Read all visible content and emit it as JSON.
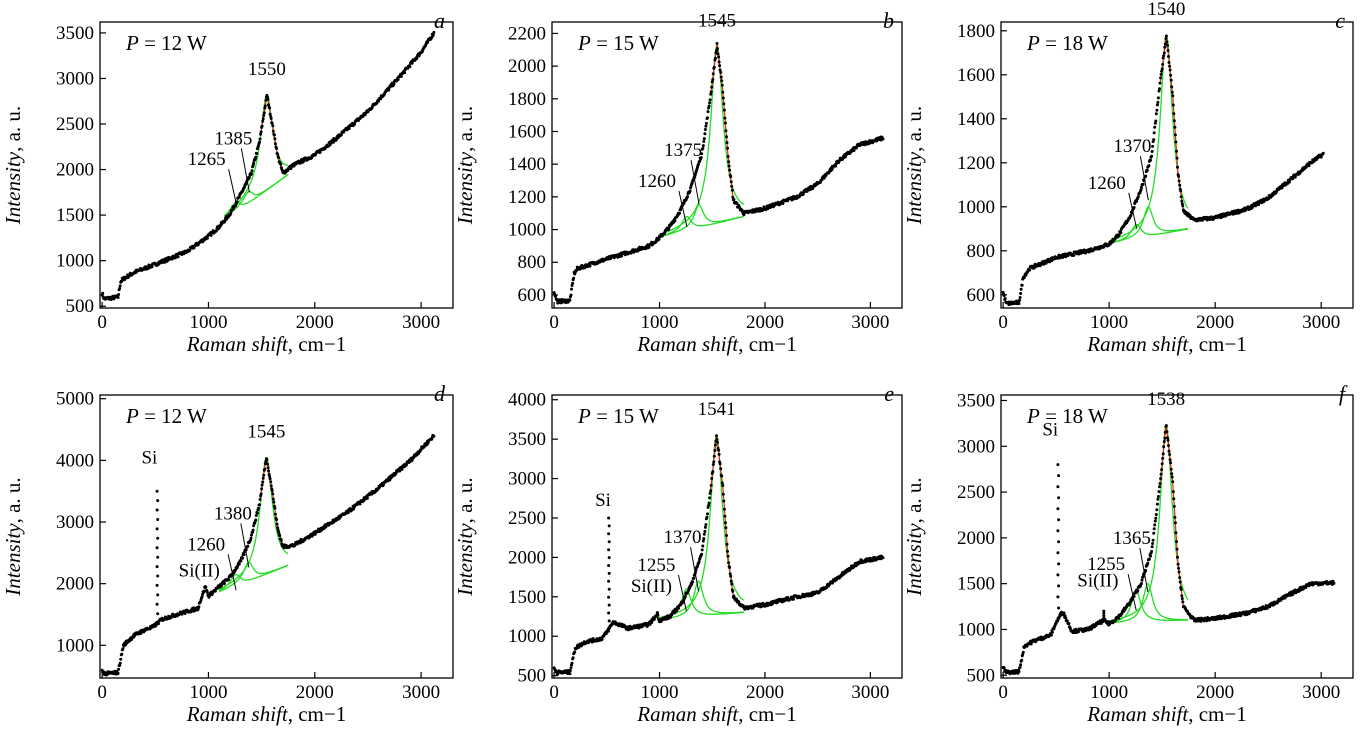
{
  "chart_data": [
    {
      "panel": "a",
      "type": "scatter",
      "power_symbol": "P",
      "power_value": " = 12 W",
      "xlabel": "Raman shift",
      "xunit": ", cm−1",
      "ylabel": "Intensity",
      "yunit": ", a. u.",
      "xlim": [
        -20,
        3300
      ],
      "ylim": [
        480,
        3620
      ],
      "xticks": [
        0,
        1000,
        2000,
        3000
      ],
      "yticks": [
        500,
        1000,
        1500,
        2000,
        2500,
        3000,
        3500
      ],
      "peaks": [
        {
          "label": "1265",
          "x": 1265,
          "y": 1850
        },
        {
          "label": "1385",
          "x": 1385,
          "y": 1990
        },
        {
          "label": "1550",
          "x": 1550,
          "y": 2820
        }
      ],
      "spectrum": [
        [
          0,
          640
        ],
        [
          20,
          580
        ],
        [
          150,
          600
        ],
        [
          175,
          770
        ],
        [
          200,
          800
        ],
        [
          300,
          870
        ],
        [
          500,
          960
        ],
        [
          800,
          1100
        ],
        [
          1000,
          1270
        ],
        [
          1100,
          1370
        ],
        [
          1200,
          1510
        ],
        [
          1300,
          1720
        ],
        [
          1400,
          1950
        ],
        [
          1480,
          2300
        ],
        [
          1550,
          2820
        ],
        [
          1600,
          2500
        ],
        [
          1650,
          2160
        ],
        [
          1700,
          1960
        ],
        [
          1800,
          2050
        ],
        [
          2000,
          2160
        ],
        [
          2200,
          2340
        ],
        [
          2500,
          2640
        ],
        [
          2800,
          3020
        ],
        [
          3000,
          3290
        ],
        [
          3120,
          3500
        ]
      ],
      "peak_bands": [
        [
          1265,
          1640,
          60
        ],
        [
          1385,
          1760,
          55
        ],
        [
          1550,
          2820,
          70
        ]
      ],
      "baseline": [
        [
          1150,
          1450
        ],
        [
          1750,
          1950
        ]
      ],
      "si": null
    },
    {
      "panel": "b",
      "type": "scatter",
      "power_symbol": "P",
      "power_value": " = 15 W",
      "xlabel": "Raman shift",
      "xunit": ", cm−1",
      "ylabel": "Intensity",
      "yunit": ", a. u.",
      "xlim": [
        -20,
        3300
      ],
      "ylim": [
        520,
        2270
      ],
      "xticks": [
        0,
        1000,
        2000,
        3000
      ],
      "yticks": [
        600,
        800,
        1000,
        1200,
        1400,
        1600,
        1800,
        2000,
        2200
      ],
      "peaks": [
        {
          "label": "1260",
          "x": 1260,
          "y": 1150
        },
        {
          "label": "1375",
          "x": 1375,
          "y": 1290
        },
        {
          "label": "1545",
          "x": 1545,
          "y": 2120
        }
      ],
      "spectrum": [
        [
          0,
          620
        ],
        [
          30,
          560
        ],
        [
          150,
          565
        ],
        [
          190,
          730
        ],
        [
          220,
          760
        ],
        [
          400,
          800
        ],
        [
          700,
          860
        ],
        [
          900,
          900
        ],
        [
          1000,
          950
        ],
        [
          1100,
          1020
        ],
        [
          1200,
          1120
        ],
        [
          1300,
          1260
        ],
        [
          1400,
          1460
        ],
        [
          1480,
          1800
        ],
        [
          1545,
          2130
        ],
        [
          1600,
          1850
        ],
        [
          1650,
          1450
        ],
        [
          1700,
          1180
        ],
        [
          1800,
          1100
        ],
        [
          2000,
          1130
        ],
        [
          2300,
          1200
        ],
        [
          2500,
          1280
        ],
        [
          2700,
          1420
        ],
        [
          2900,
          1520
        ],
        [
          3120,
          1560
        ]
      ],
      "peak_bands": [
        [
          1260,
          1080,
          55
        ],
        [
          1375,
          1150,
          55
        ],
        [
          1545,
          2130,
          70
        ]
      ],
      "baseline": [
        [
          1000,
          950
        ],
        [
          1800,
          1080
        ]
      ],
      "si": null
    },
    {
      "panel": "c",
      "type": "scatter",
      "power_symbol": "P",
      "power_value": " = 18 W",
      "xlabel": "Raman shift",
      "xunit": ", cm−1",
      "ylabel": "Intensity",
      "yunit": ", a. u.",
      "xlim": [
        -20,
        3300
      ],
      "ylim": [
        540,
        1840
      ],
      "xticks": [
        0,
        1000,
        2000,
        3000
      ],
      "yticks": [
        600,
        800,
        1000,
        1200,
        1400,
        1600,
        1800
      ],
      "peaks": [
        {
          "label": "1260",
          "x": 1260,
          "y": 1000
        },
        {
          "label": "1370",
          "x": 1370,
          "y": 1130
        },
        {
          "label": "1540",
          "x": 1540,
          "y": 1780
        }
      ],
      "spectrum": [
        [
          0,
          610
        ],
        [
          30,
          560
        ],
        [
          150,
          565
        ],
        [
          190,
          680
        ],
        [
          250,
          720
        ],
        [
          500,
          770
        ],
        [
          800,
          800
        ],
        [
          1000,
          830
        ],
        [
          1100,
          880
        ],
        [
          1200,
          960
        ],
        [
          1300,
          1080
        ],
        [
          1400,
          1230
        ],
        [
          1480,
          1560
        ],
        [
          1540,
          1780
        ],
        [
          1600,
          1500
        ],
        [
          1650,
          1150
        ],
        [
          1700,
          980
        ],
        [
          1800,
          940
        ],
        [
          2000,
          950
        ],
        [
          2300,
          990
        ],
        [
          2500,
          1040
        ],
        [
          2700,
          1120
        ],
        [
          2900,
          1200
        ],
        [
          3020,
          1240
        ]
      ],
      "peak_bands": [
        [
          1260,
          920,
          55
        ],
        [
          1370,
          1000,
          55
        ],
        [
          1540,
          1780,
          70
        ]
      ],
      "baseline": [
        [
          1000,
          830
        ],
        [
          1750,
          900
        ]
      ],
      "si": null
    },
    {
      "panel": "d",
      "type": "scatter",
      "power_symbol": "P",
      "power_value": " = 12 W",
      "xlabel": "Raman shift",
      "xunit": ", cm−1",
      "ylabel": "Intensity",
      "yunit": ", a. u.",
      "xlim": [
        -20,
        3300
      ],
      "ylim": [
        470,
        5060
      ],
      "xticks": [
        0,
        1000,
        2000,
        3000
      ],
      "yticks": [
        1000,
        2000,
        3000,
        4000,
        5000
      ],
      "peaks": [
        {
          "label": "1260",
          "x": 1260,
          "y": 2250
        },
        {
          "label": "1380",
          "x": 1380,
          "y": 2620
        },
        {
          "label": "1545",
          "x": 1545,
          "y": 4050
        }
      ],
      "spectrum": [
        [
          0,
          580
        ],
        [
          30,
          540
        ],
        [
          150,
          560
        ],
        [
          200,
          1000
        ],
        [
          300,
          1160
        ],
        [
          400,
          1250
        ],
        [
          480,
          1300
        ],
        [
          560,
          1420
        ],
        [
          700,
          1500
        ],
        [
          900,
          1600
        ],
        [
          970,
          1950
        ],
        [
          1000,
          1800
        ],
        [
          1100,
          1950
        ],
        [
          1200,
          2100
        ],
        [
          1300,
          2350
        ],
        [
          1400,
          2750
        ],
        [
          1480,
          3300
        ],
        [
          1545,
          4050
        ],
        [
          1600,
          3500
        ],
        [
          1650,
          2900
        ],
        [
          1700,
          2600
        ],
        [
          1800,
          2620
        ],
        [
          2000,
          2820
        ],
        [
          2300,
          3150
        ],
        [
          2600,
          3550
        ],
        [
          2900,
          4000
        ],
        [
          3120,
          4400
        ]
      ],
      "peak_bands": [
        [
          1260,
          2150,
          55
        ],
        [
          1380,
          2350,
          55
        ],
        [
          1545,
          4050,
          70
        ]
      ],
      "baseline": [
        [
          1100,
          1850
        ],
        [
          1750,
          2300
        ]
      ],
      "si": {
        "label": "Si",
        "label2": "Si(II)",
        "x": 520,
        "peak": 3500,
        "x2": 970,
        "peak2": 1950,
        "label_x": 520,
        "label_y": 3950,
        "label2_y": 2120
      }
    },
    {
      "panel": "e",
      "type": "scatter",
      "power_symbol": "P",
      "power_value": " = 15 W",
      "xlabel": "Raman shift",
      "xunit": ", cm−1",
      "ylabel": "Intensity",
      "yunit": ", a. u.",
      "xlim": [
        -20,
        3300
      ],
      "ylim": [
        470,
        4060
      ],
      "xticks": [
        0,
        1000,
        2000,
        3000
      ],
      "yticks": [
        500,
        1000,
        1500,
        2000,
        2500,
        3000,
        3500,
        4000
      ],
      "peaks": [
        {
          "label": "1255",
          "x": 1255,
          "y": 1600
        },
        {
          "label": "1370",
          "x": 1370,
          "y": 1850
        },
        {
          "label": "1541",
          "x": 1541,
          "y": 3550
        }
      ],
      "spectrum": [
        [
          0,
          590
        ],
        [
          30,
          540
        ],
        [
          150,
          545
        ],
        [
          200,
          850
        ],
        [
          300,
          930
        ],
        [
          450,
          970
        ],
        [
          500,
          1050
        ],
        [
          560,
          1180
        ],
        [
          700,
          1100
        ],
        [
          900,
          1150
        ],
        [
          980,
          1280
        ],
        [
          1000,
          1200
        ],
        [
          1100,
          1250
        ],
        [
          1200,
          1400
        ],
        [
          1300,
          1650
        ],
        [
          1400,
          2050
        ],
        [
          1480,
          2800
        ],
        [
          1541,
          3550
        ],
        [
          1600,
          2900
        ],
        [
          1650,
          2000
        ],
        [
          1700,
          1500
        ],
        [
          1800,
          1360
        ],
        [
          2000,
          1400
        ],
        [
          2300,
          1500
        ],
        [
          2500,
          1550
        ],
        [
          2700,
          1750
        ],
        [
          2900,
          1950
        ],
        [
          3120,
          2000
        ]
      ],
      "peak_bands": [
        [
          1255,
          1600,
          55
        ],
        [
          1370,
          1700,
          55
        ],
        [
          1541,
          3550,
          70
        ]
      ],
      "baseline": [
        [
          1000,
          1200
        ],
        [
          1800,
          1300
        ]
      ],
      "si": {
        "label": "Si",
        "label2": "Si(II)",
        "x": 520,
        "peak": 2500,
        "x2": 980,
        "peak2": 1300,
        "label_x": 540,
        "label_y": 2650,
        "label2_y": 1560
      }
    },
    {
      "panel": "f",
      "type": "scatter",
      "power_symbol": "P",
      "power_value": " = 18 W",
      "xlabel": "Raman shift",
      "xunit": ", cm−1",
      "ylabel": "Intensity",
      "yunit": ", a. u.",
      "xlim": [
        -20,
        3300
      ],
      "ylim": [
        470,
        3560
      ],
      "xticks": [
        0,
        1000,
        2000,
        3000
      ],
      "yticks": [
        500,
        1000,
        1500,
        2000,
        2500,
        3000,
        3500
      ],
      "peaks": [
        {
          "label": "1255",
          "x": 1255,
          "y": 1450
        },
        {
          "label": "1365",
          "x": 1365,
          "y": 1650
        },
        {
          "label": "1538",
          "x": 1538,
          "y": 3230
        }
      ],
      "spectrum": [
        [
          0,
          580
        ],
        [
          30,
          530
        ],
        [
          150,
          540
        ],
        [
          200,
          820
        ],
        [
          300,
          880
        ],
        [
          450,
          940
        ],
        [
          490,
          1050
        ],
        [
          560,
          1200
        ],
        [
          650,
          980
        ],
        [
          800,
          1000
        ],
        [
          950,
          1100
        ],
        [
          1000,
          1060
        ],
        [
          1100,
          1150
        ],
        [
          1200,
          1300
        ],
        [
          1300,
          1500
        ],
        [
          1400,
          1850
        ],
        [
          1480,
          2600
        ],
        [
          1538,
          3230
        ],
        [
          1600,
          2600
        ],
        [
          1650,
          1700
        ],
        [
          1700,
          1250
        ],
        [
          1800,
          1100
        ],
        [
          2000,
          1120
        ],
        [
          2300,
          1180
        ],
        [
          2500,
          1250
        ],
        [
          2700,
          1380
        ],
        [
          2900,
          1500
        ],
        [
          3120,
          1510
        ]
      ],
      "peak_bands": [
        [
          1255,
          1420,
          55
        ],
        [
          1365,
          1500,
          55
        ],
        [
          1538,
          3230,
          70
        ]
      ],
      "baseline": [
        [
          1000,
          1060
        ],
        [
          1750,
          1100
        ]
      ],
      "si": {
        "label": "Si",
        "label2": "Si(II)",
        "x": 520,
        "peak": 2800,
        "x2": 950,
        "peak2": 1200,
        "label_x": 520,
        "label_y": 3120,
        "label2_y": 1470
      }
    }
  ]
}
